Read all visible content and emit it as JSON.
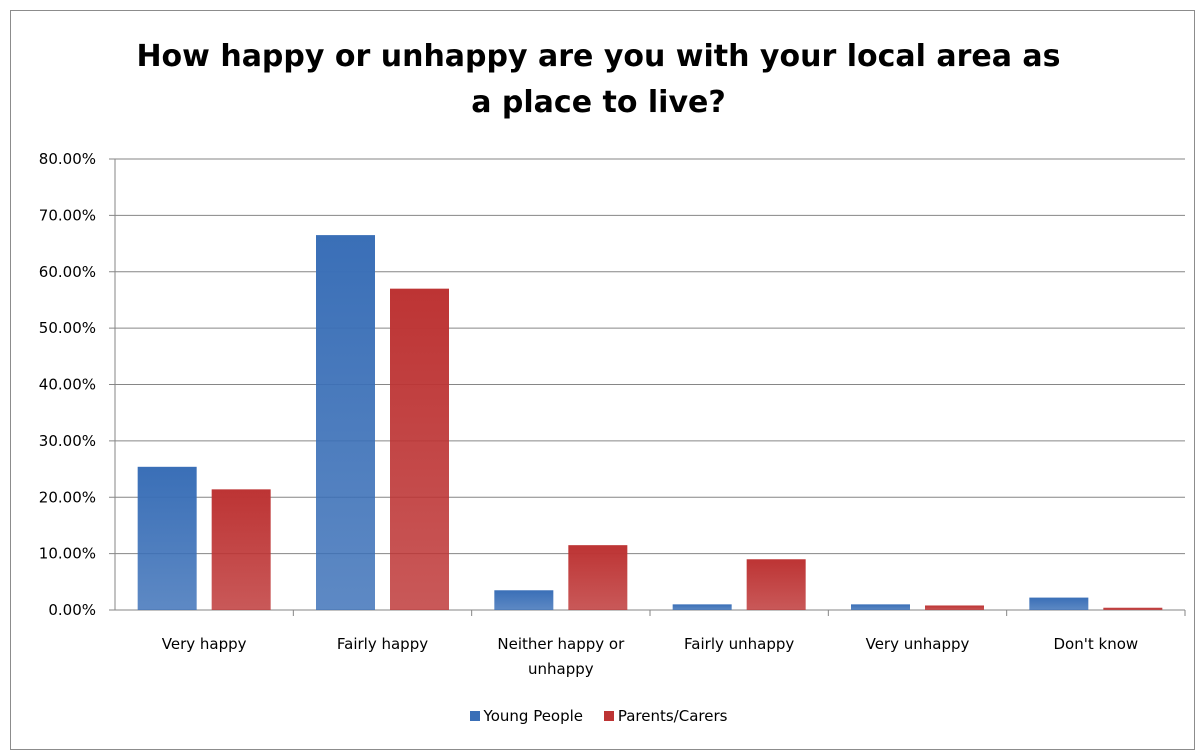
{
  "chart_data": {
    "type": "bar",
    "title_lines": [
      "How happy or unhappy are you with your local area as",
      "a place to live?"
    ],
    "categories": [
      [
        "Very happy"
      ],
      [
        "Fairly happy"
      ],
      [
        "Neither happy  or",
        "unhappy"
      ],
      [
        "Fairly unhappy"
      ],
      [
        "Very unhappy"
      ],
      [
        "Don't know"
      ]
    ],
    "series": [
      {
        "name": "Young People",
        "color": "#3a6fb7",
        "values": [
          25.4,
          66.5,
          3.5,
          1.0,
          1.0,
          2.2
        ]
      },
      {
        "name": "Parents/Carers",
        "color": "#bd3434",
        "values": [
          21.4,
          57.0,
          11.5,
          9.0,
          0.8,
          0.4
        ]
      }
    ],
    "y_ticks": [
      "0.00%",
      "10.00%",
      "20.00%",
      "30.00%",
      "40.00%",
      "50.00%",
      "60.00%",
      "70.00%",
      "80.00%"
    ],
    "ylim": [
      0,
      80
    ],
    "grid": true,
    "legend_position": "bottom"
  }
}
